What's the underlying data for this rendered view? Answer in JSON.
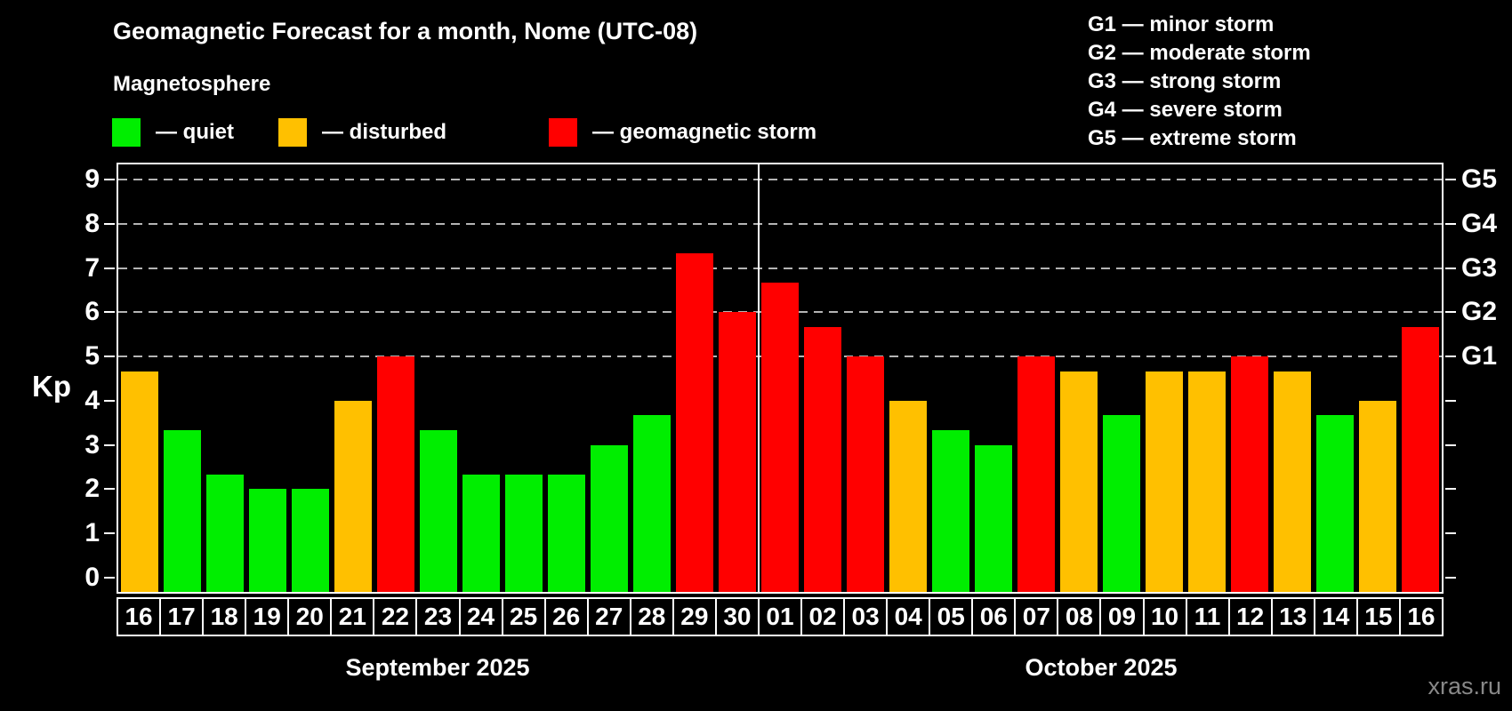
{
  "header": {
    "title": "Geomagnetic Forecast for a month, Nome (UTC-08)"
  },
  "legend": {
    "title": "Magnetosphere",
    "items": [
      {
        "key": "quiet",
        "label": "— quiet",
        "color": "#00ee00"
      },
      {
        "key": "disturbed",
        "label": "— disturbed",
        "color": "#ffc000"
      },
      {
        "key": "storm",
        "label": "— geomagnetic storm",
        "color": "#ff0000"
      }
    ]
  },
  "g_scale": [
    {
      "label": "G1 — minor storm"
    },
    {
      "label": "G2 — moderate storm"
    },
    {
      "label": "G3 — strong storm"
    },
    {
      "label": "G4 — severe storm"
    },
    {
      "label": "G5 — extreme storm"
    }
  ],
  "axes": {
    "y_label": "Kp",
    "y_ticks": [
      "0",
      "1",
      "2",
      "3",
      "4",
      "5",
      "6",
      "7",
      "8",
      "9"
    ],
    "right_labels": [
      {
        "kp": 5,
        "label": "G1"
      },
      {
        "kp": 6,
        "label": "G2"
      },
      {
        "kp": 7,
        "label": "G3"
      },
      {
        "kp": 8,
        "label": "G4"
      },
      {
        "kp": 9,
        "label": "G5"
      }
    ]
  },
  "months": [
    {
      "label": "September 2025",
      "days": 15
    },
    {
      "label": "October 2025",
      "days": 16
    }
  ],
  "watermark": "xras.ru",
  "chart_data": {
    "type": "bar",
    "title": "Geomagnetic Forecast for a month, Nome (UTC-08)",
    "xlabel": "",
    "ylabel": "Kp",
    "ylim": [
      0,
      9
    ],
    "grid": "horizontal dashed lines at Kp 5,6,7,8,9 (G1–G5)",
    "gridlines_kp": [
      5,
      6,
      7,
      8,
      9
    ],
    "legend_position": "top-left",
    "month_split_index": 15,
    "color_map": {
      "quiet": "#00ee00",
      "disturbed": "#ffc000",
      "storm": "#ff0000"
    },
    "bars": [
      {
        "month": "September 2025",
        "day": "16",
        "kp": 4.67,
        "status": "disturbed"
      },
      {
        "month": "September 2025",
        "day": "17",
        "kp": 3.33,
        "status": "quiet"
      },
      {
        "month": "September 2025",
        "day": "18",
        "kp": 2.33,
        "status": "quiet"
      },
      {
        "month": "September 2025",
        "day": "19",
        "kp": 2.0,
        "status": "quiet"
      },
      {
        "month": "September 2025",
        "day": "20",
        "kp": 2.0,
        "status": "quiet"
      },
      {
        "month": "September 2025",
        "day": "21",
        "kp": 4.0,
        "status": "disturbed"
      },
      {
        "month": "September 2025",
        "day": "22",
        "kp": 5.0,
        "status": "storm"
      },
      {
        "month": "September 2025",
        "day": "23",
        "kp": 3.33,
        "status": "quiet"
      },
      {
        "month": "September 2025",
        "day": "24",
        "kp": 2.33,
        "status": "quiet"
      },
      {
        "month": "September 2025",
        "day": "25",
        "kp": 2.33,
        "status": "quiet"
      },
      {
        "month": "September 2025",
        "day": "26",
        "kp": 2.33,
        "status": "quiet"
      },
      {
        "month": "September 2025",
        "day": "27",
        "kp": 3.0,
        "status": "quiet"
      },
      {
        "month": "September 2025",
        "day": "28",
        "kp": 3.67,
        "status": "quiet"
      },
      {
        "month": "September 2025",
        "day": "29",
        "kp": 7.33,
        "status": "storm"
      },
      {
        "month": "September 2025",
        "day": "30",
        "kp": 6.0,
        "status": "storm"
      },
      {
        "month": "October 2025",
        "day": "01",
        "kp": 6.67,
        "status": "storm"
      },
      {
        "month": "October 2025",
        "day": "02",
        "kp": 5.67,
        "status": "storm"
      },
      {
        "month": "October 2025",
        "day": "03",
        "kp": 5.0,
        "status": "storm"
      },
      {
        "month": "October 2025",
        "day": "04",
        "kp": 4.0,
        "status": "disturbed"
      },
      {
        "month": "October 2025",
        "day": "05",
        "kp": 3.33,
        "status": "quiet"
      },
      {
        "month": "October 2025",
        "day": "06",
        "kp": 3.0,
        "status": "quiet"
      },
      {
        "month": "October 2025",
        "day": "07",
        "kp": 5.0,
        "status": "storm"
      },
      {
        "month": "October 2025",
        "day": "08",
        "kp": 4.67,
        "status": "disturbed"
      },
      {
        "month": "October 2025",
        "day": "09",
        "kp": 3.67,
        "status": "quiet"
      },
      {
        "month": "October 2025",
        "day": "10",
        "kp": 4.67,
        "status": "disturbed"
      },
      {
        "month": "October 2025",
        "day": "11",
        "kp": 4.67,
        "status": "disturbed"
      },
      {
        "month": "October 2025",
        "day": "12",
        "kp": 5.0,
        "status": "storm"
      },
      {
        "month": "October 2025",
        "day": "13",
        "kp": 4.67,
        "status": "disturbed"
      },
      {
        "month": "October 2025",
        "day": "14",
        "kp": 3.67,
        "status": "quiet"
      },
      {
        "month": "October 2025",
        "day": "15",
        "kp": 4.0,
        "status": "disturbed"
      },
      {
        "month": "October 2025",
        "day": "16",
        "kp": 5.67,
        "status": "storm"
      }
    ]
  }
}
